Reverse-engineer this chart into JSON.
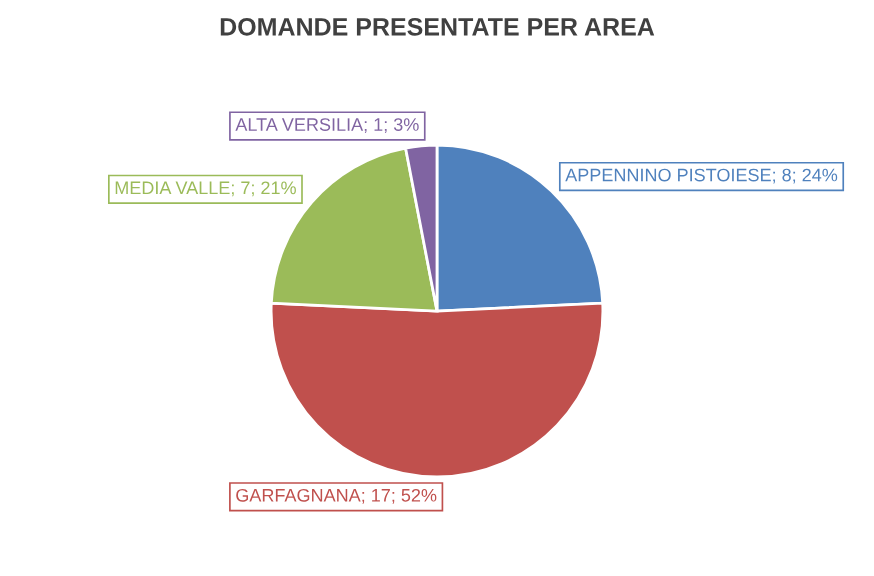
{
  "chart_data": {
    "type": "pie",
    "title": "DOMANDE PRESENTATE PER AREA",
    "categories": [
      "APPENNINO PISTOIESE",
      "GARFAGNANA",
      "MEDIA VALLE",
      "ALTA VERSILIA"
    ],
    "values": [
      8,
      17,
      7,
      1
    ],
    "value_labels": [
      "8; 24%",
      "17; 52%",
      "7; 21%",
      "1; 3%"
    ],
    "colors": [
      "#4f81bd",
      "#c0504d",
      "#9bbb59",
      "#8064a2"
    ]
  }
}
